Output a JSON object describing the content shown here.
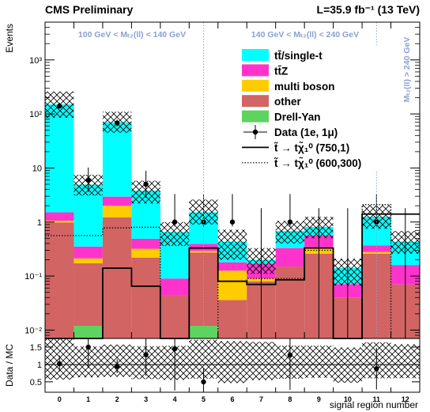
{
  "header": {
    "left": "CMS Preliminary",
    "right": "L=35.9 fb⁻¹ (13 TeV)"
  },
  "chart_data": {
    "type": "bar",
    "stacked": true,
    "log_y": true,
    "xlabel": "signal region number",
    "ylabel": "Events",
    "ylim": [
      0.007,
      5000
    ],
    "categories": [
      "0",
      "1",
      "2",
      "3",
      "4",
      "5",
      "6",
      "7",
      "8",
      "9",
      "10",
      "11",
      "12"
    ],
    "y_ticks": [
      {
        "value": 0.01,
        "label": "10⁻²"
      },
      {
        "value": 0.1,
        "label": "10⁻¹"
      },
      {
        "value": 1,
        "label": "1"
      },
      {
        "value": 10,
        "label": "10"
      },
      {
        "value": 100,
        "label": "10²"
      },
      {
        "value": 1000,
        "label": "10³"
      }
    ],
    "region_labels": [
      "100 GeV < Mₜ₂(ll) < 140 GeV",
      "140 GeV < Mₜ₂(ll) < 240 GeV",
      "Mₜ₂(ll) > 240 GeV"
    ],
    "series": [
      {
        "name": "Drell-Yan",
        "color": "#5fd35f",
        "values": [
          0,
          0.012,
          0,
          0,
          0,
          0.012,
          0,
          0,
          0,
          0,
          0,
          0,
          0
        ]
      },
      {
        "name": "other",
        "color": "#d26464",
        "values": [
          0.98,
          0.16,
          1.22,
          0.22,
          0.044,
          0.26,
          0.036,
          0.08,
          0.15,
          0.26,
          0.04,
          0.26,
          0.07
        ]
      },
      {
        "name": "multi boson",
        "color": "#ffcc00",
        "values": [
          0.08,
          0.04,
          0.78,
          0.1,
          0,
          0.02,
          0.09,
          0.01,
          0,
          0.08,
          0,
          0.02,
          0
        ]
      },
      {
        "name": "tt̄Z",
        "color": "#ff33cc",
        "values": [
          0.45,
          0.14,
          0.95,
          0.17,
          0.046,
          0.1,
          0.054,
          0.08,
          0.18,
          0.22,
          0.031,
          0.09,
          0.09
        ]
      },
      {
        "name": "tt̄/single-t",
        "color": "#00ffff",
        "values": [
          149,
          4.56,
          67,
          3.31,
          0.56,
          1.12,
          0.25,
          0.03,
          0.35,
          0.25,
          0.07,
          0.88,
          0.27
        ]
      }
    ],
    "mc_total": [
      150.5,
      4.93,
      69.95,
      3.8,
      0.65,
      1.52,
      0.43,
      0.2,
      0.68,
      0.81,
      0.141,
      1.25,
      0.43
    ],
    "unc_band": [
      [
        85,
        260
      ],
      [
        3.1,
        7.5
      ],
      [
        45,
        110
      ],
      [
        2.2,
        5.8
      ],
      [
        0.36,
        1.0
      ],
      [
        0.9,
        2.6
      ],
      [
        0.2,
        0.72
      ],
      [
        0.11,
        0.33
      ],
      [
        0.4,
        1.05
      ],
      [
        0.5,
        1.25
      ],
      [
        0.067,
        0.21
      ],
      [
        0.75,
        2.05
      ],
      [
        0.26,
        0.68
      ]
    ],
    "data": {
      "name": "Data (1e, 1μ)",
      "values": [
        140,
        6,
        68,
        5,
        1,
        1,
        1,
        0,
        1,
        0,
        0,
        1,
        0
      ],
      "err_low": [
        129,
        3.6,
        59.8,
        2.8,
        0.83,
        0.83,
        0.83,
        0,
        0.83,
        0,
        0,
        0.83,
        0
      ],
      "err_high": [
        160,
        10.2,
        79,
        8.9,
        3.3,
        3.3,
        3.3,
        1.8,
        3.3,
        1.8,
        1.8,
        3.3,
        1.8
      ]
    },
    "signals": [
      {
        "name": "t̃ → tχ̃₁⁰ (750,1)",
        "style": "solid",
        "values": [
          0.007,
          0.007,
          0.14,
          0.065,
          0.007,
          0.33,
          0.08,
          0.07,
          0.085,
          0.33,
          0.007,
          1.4,
          1.4
        ]
      },
      {
        "name": "t̃ → tχ̃₁⁰ (600,300)",
        "style": "dotted",
        "values": [
          0.56,
          0.56,
          0.78,
          0.8,
          0.007,
          0.007,
          0.08,
          0.09,
          0.09,
          0.3,
          0.007,
          2.1,
          0.007
        ]
      }
    ],
    "ratio": {
      "ylabel": "Data / MC",
      "ylim": [
        0.2,
        1.75
      ],
      "y_ticks": [
        0.5,
        1,
        1.5
      ],
      "y_tick_labels": [
        "0.5",
        "1",
        "1.5"
      ],
      "points": [
        [
          0,
          1.02
        ],
        [
          1,
          1.5
        ],
        [
          2,
          0.95
        ],
        [
          3,
          1.28
        ],
        [
          4,
          1.45
        ],
        [
          5,
          0.5
        ],
        [
          8,
          1.27
        ],
        [
          11,
          0.88
        ]
      ],
      "points_err": [
        [
          0.22,
          0.24
        ],
        [
          0.6,
          0.6
        ],
        [
          0.2,
          0.2
        ],
        [
          0.6,
          0.6
        ],
        [
          1.2,
          1.2
        ],
        [
          0.4,
          0.4
        ],
        [
          1.0,
          1.0
        ],
        [
          0.6,
          0.6
        ]
      ]
    },
    "legend_position": "top-right",
    "grid": false
  }
}
